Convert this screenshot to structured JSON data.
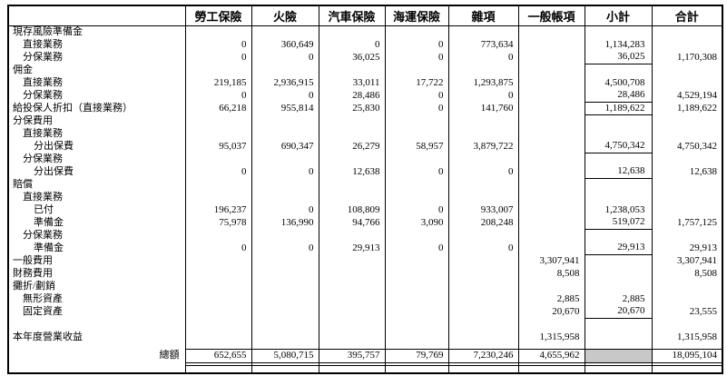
{
  "colors": {
    "shaded_cell": "#c8c8c8",
    "border": "#000000",
    "background": "#ffffff"
  },
  "table": {
    "columns": [
      "",
      "勞工保險",
      "火險",
      "汽車保險",
      "海運保險",
      "雜項",
      "一般帳項",
      "小計",
      "合計"
    ],
    "rows": [
      {
        "label": "現存風險準備金",
        "indent": 0,
        "values": [
          "",
          "",
          "",
          "",
          "",
          "",
          "",
          ""
        ]
      },
      {
        "label": "直接業務",
        "indent": 1,
        "values": [
          "0",
          "360,649",
          "0",
          "0",
          "773,634",
          "",
          "1,134,283",
          ""
        ]
      },
      {
        "label": "分保業務",
        "indent": 1,
        "values": [
          "0",
          "0",
          "36,025",
          "0",
          "0",
          "",
          "36,025",
          "1,170,308"
        ],
        "subtotal_rule": true
      },
      {
        "label": "佣金",
        "indent": 0,
        "values": [
          "",
          "",
          "",
          "",
          "",
          "",
          "",
          ""
        ]
      },
      {
        "label": "直接業務",
        "indent": 1,
        "values": [
          "219,185",
          "2,936,915",
          "33,011",
          "17,722",
          "1,293,875",
          "",
          "4,500,708",
          ""
        ]
      },
      {
        "label": "分保業務",
        "indent": 1,
        "values": [
          "0",
          "0",
          "28,486",
          "0",
          "0",
          "",
          "28,486",
          "4,529,194"
        ],
        "subtotal_rule": true
      },
      {
        "label": "給投保人折扣（直接業務）",
        "indent": 0,
        "values": [
          "66,218",
          "955,814",
          "25,830",
          "0",
          "141,760",
          "",
          "1,189,622",
          "1,189,622"
        ],
        "subtotal_rule": true
      },
      {
        "label": "分保費用",
        "indent": 0,
        "values": [
          "",
          "",
          "",
          "",
          "",
          "",
          "",
          ""
        ]
      },
      {
        "label": "直接業務",
        "indent": 1,
        "values": [
          "",
          "",
          "",
          "",
          "",
          "",
          "",
          ""
        ]
      },
      {
        "label": "分出保費",
        "indent": 2,
        "values": [
          "95,037",
          "690,347",
          "26,279",
          "58,957",
          "3,879,722",
          "",
          "4,750,342",
          "4,750,342"
        ],
        "subtotal_rule": true
      },
      {
        "label": "分保業務",
        "indent": 1,
        "values": [
          "",
          "",
          "",
          "",
          "",
          "",
          "",
          ""
        ]
      },
      {
        "label": "分出保費",
        "indent": 2,
        "values": [
          "0",
          "0",
          "12,638",
          "0",
          "0",
          "",
          "12,638",
          "12,638"
        ],
        "subtotal_rule": true
      },
      {
        "label": "賠償",
        "indent": 0,
        "values": [
          "",
          "",
          "",
          "",
          "",
          "",
          "",
          ""
        ]
      },
      {
        "label": "直接業務",
        "indent": 1,
        "values": [
          "",
          "",
          "",
          "",
          "",
          "",
          "",
          ""
        ]
      },
      {
        "label": "已付",
        "indent": 2,
        "values": [
          "196,237",
          "0",
          "108,809",
          "0",
          "933,007",
          "",
          "1,238,053",
          ""
        ]
      },
      {
        "label": "準備金",
        "indent": 2,
        "values": [
          "75,978",
          "136,990",
          "94,766",
          "3,090",
          "208,248",
          "",
          "519,072",
          "1,757,125"
        ],
        "subtotal_rule": true
      },
      {
        "label": "分保業務",
        "indent": 1,
        "values": [
          "",
          "",
          "",
          "",
          "",
          "",
          "",
          ""
        ]
      },
      {
        "label": "準備金",
        "indent": 2,
        "values": [
          "0",
          "0",
          "29,913",
          "0",
          "0",
          "",
          "29,913",
          "29,913"
        ],
        "subtotal_rule": true
      },
      {
        "label": "一般費用",
        "indent": 0,
        "values": [
          "",
          "",
          "",
          "",
          "",
          "3,307,941",
          "",
          "3,307,941"
        ]
      },
      {
        "label": "財務費用",
        "indent": 0,
        "values": [
          "",
          "",
          "",
          "",
          "",
          "8,508",
          "",
          "8,508"
        ]
      },
      {
        "label": "攤折/劃銷",
        "indent": 0,
        "values": [
          "",
          "",
          "",
          "",
          "",
          "",
          "",
          ""
        ]
      },
      {
        "label": "無形資產",
        "indent": 1,
        "values": [
          "",
          "",
          "",
          "",
          "",
          "2,885",
          "2,885",
          ""
        ]
      },
      {
        "label": "固定資產",
        "indent": 1,
        "values": [
          "",
          "",
          "",
          "",
          "",
          "20,670",
          "20,670",
          "23,555"
        ],
        "subtotal_rule": true
      },
      {
        "label": "",
        "indent": 0,
        "values": [
          "",
          "",
          "",
          "",
          "",
          "",
          "",
          ""
        ]
      },
      {
        "label": "本年度營業收益",
        "indent": 0,
        "values": [
          "",
          "",
          "",
          "",
          "",
          "1,315,958",
          "",
          "1,315,958"
        ]
      }
    ],
    "total_row": {
      "label": "總額",
      "values": [
        "652,655",
        "5,080,715",
        "395,757",
        "79,769",
        "7,230,246",
        "4,655,962",
        "",
        "18,095,104"
      ],
      "shaded_value_index": 6
    }
  }
}
